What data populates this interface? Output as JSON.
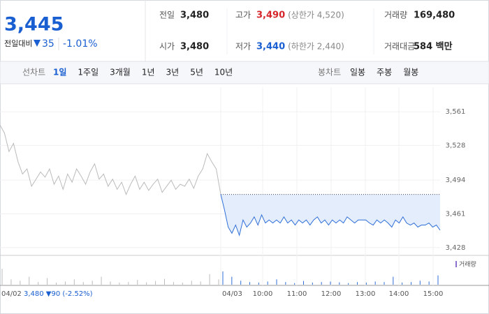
{
  "header": {
    "price": "3,445",
    "change_label": "전일대비",
    "change": "35",
    "change_rate": "-1.01%"
  },
  "table": {
    "rows": [
      [
        {
          "label": "전일",
          "value": "3,480"
        },
        {
          "label": "고가",
          "value": "3,490",
          "extra": "(상한가 4,520)"
        },
        {
          "label": "거래량",
          "value": "169,480"
        }
      ],
      [
        {
          "label": "시가",
          "value": "3,480"
        },
        {
          "label": "저가",
          "value": "3,440",
          "extra": "(하한가 2,440)"
        },
        {
          "label": "거래대금",
          "value": "584 백만"
        }
      ]
    ]
  },
  "tabs": {
    "line_label": "선차트",
    "line": [
      "1일",
      "1주일",
      "3개월",
      "1년",
      "3년",
      "5년",
      "10년"
    ],
    "candle_label": "봉차트",
    "candle": [
      "일봉",
      "주봉",
      "월봉"
    ]
  },
  "chart_data": {
    "type": "line",
    "ylim": [
      3421,
      3585
    ],
    "yticks": [
      {
        "value": 3561,
        "label": "3,561"
      },
      {
        "value": 3528,
        "label": "3,528"
      },
      {
        "value": 3494,
        "label": "3,494"
      },
      {
        "value": 3461,
        "label": "3,461"
      },
      {
        "value": 3428,
        "label": "3,428"
      }
    ],
    "prev_close": 3480,
    "series": [
      {
        "name": "04/02",
        "color": "#bbbbbb",
        "values": [
          3548,
          3540,
          3522,
          3530,
          3512,
          3500,
          3505,
          3488,
          3495,
          3502,
          3497,
          3505,
          3490,
          3498,
          3485,
          3500,
          3492,
          3505,
          3498,
          3490,
          3502,
          3510,
          3495,
          3500,
          3488,
          3495,
          3485,
          3492,
          3480,
          3490,
          3498,
          3485,
          3492,
          3484,
          3490,
          3495,
          3482,
          3488,
          3494,
          3485,
          3490,
          3488,
          3495,
          3486,
          3498,
          3505,
          3520,
          3512,
          3505,
          3480
        ]
      },
      {
        "name": "04/03",
        "color": "#2f6fd8",
        "values": [
          3480,
          3465,
          3448,
          3442,
          3450,
          3440,
          3455,
          3448,
          3452,
          3458,
          3450,
          3460,
          3452,
          3455,
          3452,
          3455,
          3452,
          3458,
          3452,
          3455,
          3450,
          3455,
          3452,
          3455,
          3450,
          3455,
          3458,
          3452,
          3455,
          3450,
          3455,
          3452,
          3455,
          3452,
          3458,
          3455,
          3452,
          3455,
          3455,
          3455,
          3452,
          3450,
          3455,
          3452,
          3455,
          3452,
          3448,
          3455,
          3452,
          3458,
          3452,
          3450,
          3452,
          3448,
          3450,
          3450,
          3452,
          3448,
          3450,
          3445
        ]
      }
    ],
    "volume": {
      "name": "거래량",
      "vlim": [
        0,
        100
      ],
      "prev": [
        60,
        20,
        15,
        30,
        10,
        25,
        8,
        12,
        20,
        10,
        15,
        30,
        12,
        8,
        10,
        18,
        9,
        14,
        22,
        10,
        8,
        15,
        12,
        40,
        20
      ],
      "today": [
        50,
        30,
        15,
        10,
        8,
        12,
        20,
        10,
        6,
        14,
        8,
        10,
        12,
        9,
        6,
        10,
        8,
        12,
        10,
        30,
        8,
        10,
        15,
        12,
        35
      ]
    },
    "x_labels": [
      "04/02",
      "04/03",
      "10:00",
      "11:00",
      "12:00",
      "13:00",
      "14:00",
      "15:00"
    ],
    "prev_summary": "3,480 ▼90 (-2.52%)"
  }
}
